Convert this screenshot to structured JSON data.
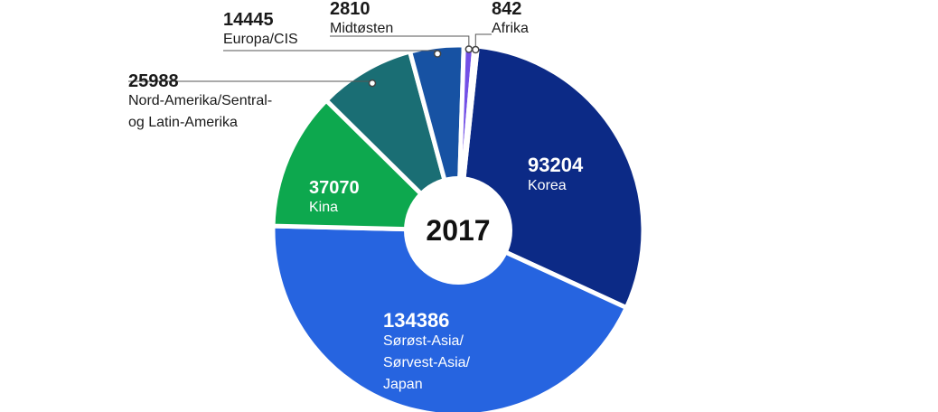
{
  "chart_data": {
    "type": "pie",
    "center_label": "2017",
    "slices": [
      {
        "value": 93204,
        "value_label": "93204",
        "label_lines": [
          "Korea"
        ],
        "color": "#0c2a86"
      },
      {
        "value": 134386,
        "value_label": "134386",
        "label_lines": [
          "Sørøst-Asia/",
          "Sørvest-Asia/",
          "Japan"
        ],
        "color": "#2664e0"
      },
      {
        "value": 37070,
        "value_label": "37070",
        "label_lines": [
          "Kina"
        ],
        "color": "#0da84e"
      },
      {
        "value": 25988,
        "value_label": "25988",
        "label_lines": [
          "Nord-Amerika/Sentral-",
          "og Latin-Amerika"
        ],
        "color": "#1a6e74"
      },
      {
        "value": 14445,
        "value_label": "14445",
        "label_lines": [
          "Europa/CIS"
        ],
        "color": "#1752a3"
      },
      {
        "value": 2810,
        "value_label": "2810",
        "label_lines": [
          "Midtøsten"
        ],
        "color": "#7350e6"
      },
      {
        "value": 842,
        "value_label": "842",
        "label_lines": [
          "Afrika"
        ],
        "color": "#3a87c8"
      }
    ]
  }
}
